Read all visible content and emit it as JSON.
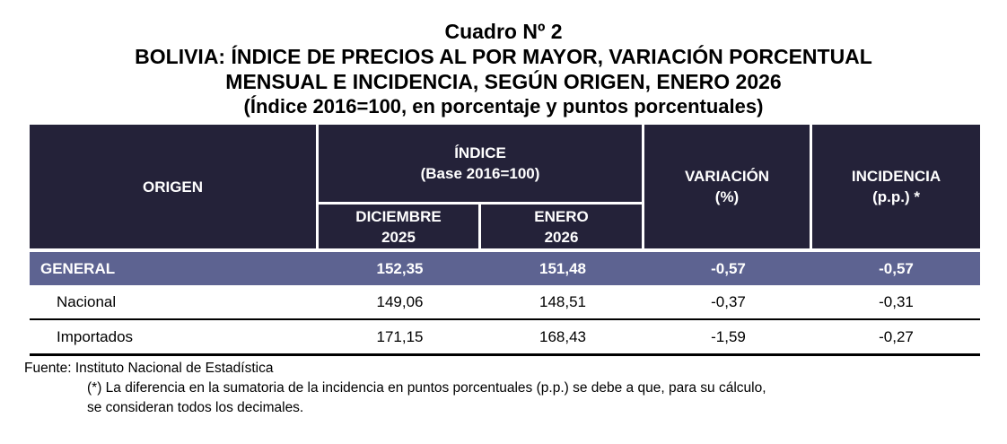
{
  "title": {
    "line1": "Cuadro Nº 2",
    "line2": "BOLIVIA: ÍNDICE DE PRECIOS AL POR MAYOR, VARIACIÓN PORCENTUAL",
    "line3": "MENSUAL E INCIDENCIA, SEGÚN ORIGEN, ENERO 2026",
    "line4": "(Índice 2016=100, en porcentaje y puntos porcentuales)"
  },
  "table": {
    "header": {
      "origen": "ORIGEN",
      "indice_line1": "ÍNDICE",
      "indice_line2": "(Base 2016=100)",
      "diciembre_line1": "DICIEMBRE",
      "diciembre_line2": "2025",
      "enero_line1": "ENERO",
      "enero_line2": "2026",
      "variacion_line1": "VARIACIÓN",
      "variacion_line2": "(%)",
      "incidencia_line1": "INCIDENCIA",
      "incidencia_line2": "(p.p.) *"
    },
    "rows": [
      {
        "origen": "GENERAL",
        "dic": "152,35",
        "ene": "151,48",
        "var": "-0,57",
        "inc": "-0,57"
      },
      {
        "origen": "Nacional",
        "dic": "149,06",
        "ene": "148,51",
        "var": "-0,37",
        "inc": "-0,31"
      },
      {
        "origen": "Importados",
        "dic": "171,15",
        "ene": "168,43",
        "var": "-1,59",
        "inc": "-0,27"
      }
    ]
  },
  "footer": {
    "fuente": "Fuente: Instituto Nacional de Estadística",
    "note_line1": "(*) La diferencia en la sumatoria de la incidencia en puntos porcentuales (p.p.) se debe a que, para su cálculo,",
    "note_line2": "se consideran todos los decimales."
  },
  "colors": {
    "header_bg": "#242239",
    "highlight_row_bg": "#5d6391",
    "header_text": "#ffffff",
    "body_text": "#000000"
  }
}
